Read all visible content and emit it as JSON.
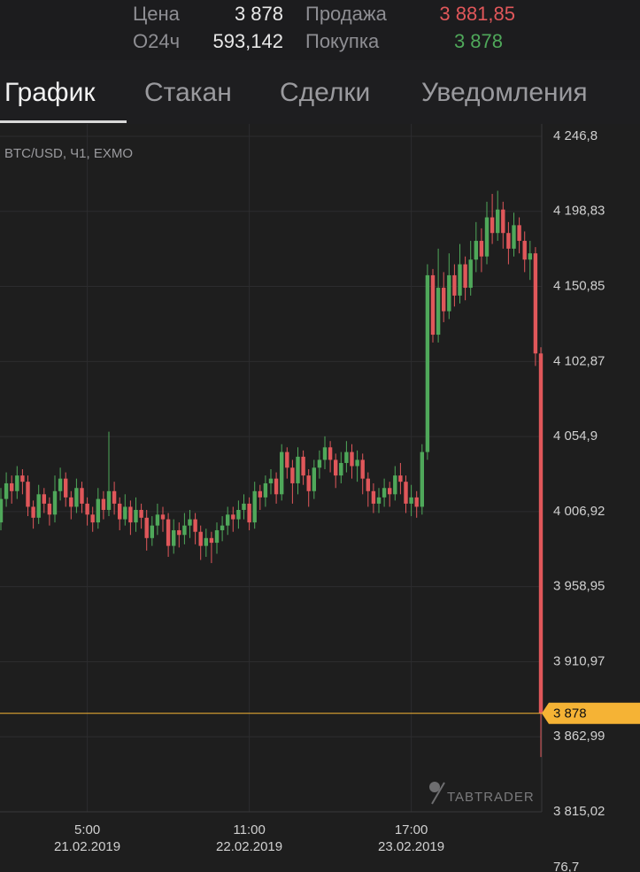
{
  "header": {
    "price_label": "Цена",
    "price": "3 878",
    "sell_label": "Продажа",
    "sell": "3 881,85",
    "volume_label": "О24ч",
    "volume": "593,142",
    "buy_label": "Покупка",
    "buy": "3 878"
  },
  "tabs": [
    "График",
    "Стакан",
    "Сделки",
    "Уведомления"
  ],
  "chart_data": {
    "type": "candlestick",
    "subtitle": "BTC/USD, Ч1, EXMO",
    "watermark": "TABTRADER",
    "volume_axis_top": "76,7",
    "up_color": "#4fa85a",
    "down_color": "#e0575a",
    "grid": true,
    "current_price": {
      "value": 3878,
      "label": "3 878"
    },
    "current_price_color": "#f5b335",
    "ylim": [
      3815.02,
      4246.8
    ],
    "yticks": [
      {
        "value": 4246.8,
        "label": "4 246,8"
      },
      {
        "value": 4198.83,
        "label": "4 198,83"
      },
      {
        "value": 4150.85,
        "label": "4 150,85"
      },
      {
        "value": 4102.87,
        "label": "4 102,87"
      },
      {
        "value": 4054.9,
        "label": "4 054,9"
      },
      {
        "value": 4006.92,
        "label": "4 006,92"
      },
      {
        "value": 3958.95,
        "label": "3 958,95"
      },
      {
        "value": 3910.97,
        "label": "3 910,97"
      },
      {
        "value": 3862.99,
        "label": "3 862,99"
      },
      {
        "value": 3815.02,
        "label": "3 815,02"
      }
    ],
    "categories": [
      null,
      null,
      null,
      null,
      null,
      null,
      null,
      null,
      null,
      null,
      null,
      null,
      null,
      null,
      null,
      null,
      [
        "5:00",
        "21.02.2019"
      ],
      null,
      null,
      null,
      null,
      null,
      null,
      null,
      null,
      null,
      null,
      null,
      null,
      null,
      null,
      null,
      null,
      null,
      null,
      null,
      null,
      null,
      null,
      null,
      null,
      null,
      null,
      null,
      null,
      null,
      [
        "11:00",
        "22.02.2019"
      ],
      null,
      null,
      null,
      null,
      null,
      null,
      null,
      null,
      null,
      null,
      null,
      null,
      null,
      null,
      null,
      null,
      null,
      null,
      null,
      null,
      null,
      null,
      null,
      null,
      null,
      null,
      null,
      null,
      null,
      [
        "17:00",
        "23.02.2019"
      ],
      null,
      null,
      null,
      null,
      null,
      null,
      null,
      null,
      null,
      null,
      null,
      null,
      null,
      null,
      null,
      null,
      null,
      null,
      null,
      null,
      null,
      null,
      null,
      null
    ],
    "open": [
      4000,
      4015,
      4025,
      4020,
      4030,
      4026,
      4010,
      4003,
      4018,
      4012,
      4005,
      4020,
      4028,
      4016,
      4010,
      4022,
      4012,
      4005,
      4000,
      4015,
      4008,
      4020,
      4012,
      4002,
      4010,
      4000,
      4008,
      4003,
      3990,
      3998,
      4005,
      4002,
      3985,
      3995,
      3992,
      3998,
      4002,
      3994,
      3985,
      3990,
      3987,
      3995,
      3998,
      4005,
      4002,
      4008,
      4012,
      4000,
      4020,
      4016,
      4025,
      4028,
      4018,
      4045,
      4035,
      4025,
      4042,
      4030,
      4020,
      4035,
      4040,
      4048,
      4040,
      4030,
      4038,
      4045,
      4036,
      4040,
      4028,
      4020,
      4012,
      4016,
      4022,
      4018,
      4030,
      4026,
      4012,
      4016,
      4010,
      4045,
      4158,
      4120,
      4150,
      4135,
      4158,
      4145,
      4165,
      4150,
      4168,
      4180,
      4170,
      4195,
      4185,
      4200,
      4185,
      4175,
      4190,
      4180,
      4168,
      4172,
      4108
    ],
    "high": [
      4022,
      4032,
      4030,
      4036,
      4034,
      4030,
      4014,
      4024,
      4022,
      4016,
      4030,
      4035,
      4032,
      4020,
      4028,
      4026,
      4016,
      4010,
      4022,
      4020,
      4058,
      4026,
      4016,
      4018,
      4014,
      4016,
      4012,
      4008,
      4004,
      4012,
      4010,
      4006,
      4002,
      4000,
      4006,
      4008,
      4006,
      3998,
      3996,
      3994,
      4000,
      4004,
      4010,
      4010,
      4014,
      4018,
      4016,
      4026,
      4024,
      4030,
      4034,
      4032,
      4050,
      4048,
      4040,
      4048,
      4046,
      4034,
      4040,
      4046,
      4055,
      4052,
      4044,
      4045,
      4052,
      4050,
      4046,
      4044,
      4032,
      4025,
      4022,
      4028,
      4026,
      4036,
      4038,
      4030,
      4024,
      4020,
      4050,
      4165,
      4162,
      4175,
      4160,
      4172,
      4165,
      4178,
      4170,
      4180,
      4192,
      4188,
      4205,
      4210,
      4212,
      4205,
      4192,
      4198,
      4195,
      4186,
      4180,
      4176,
      4112
    ],
    "low": [
      3995,
      4010,
      4012,
      4015,
      4018,
      4004,
      3996,
      3999,
      4006,
      3998,
      4000,
      4014,
      4010,
      4002,
      4006,
      4006,
      3998,
      3994,
      3996,
      4002,
      4004,
      4005,
      3995,
      3998,
      3992,
      3994,
      3996,
      3982,
      3985,
      3992,
      3994,
      3978,
      3980,
      3984,
      3986,
      3990,
      3986,
      3976,
      3978,
      3974,
      3980,
      3988,
      3992,
      3994,
      3996,
      4002,
      3995,
      3996,
      4008,
      4010,
      4018,
      4012,
      4014,
      4028,
      4012,
      4018,
      4024,
      4010,
      4015,
      4028,
      4034,
      4032,
      4022,
      4025,
      4032,
      4028,
      4026,
      4018,
      4010,
      4006,
      4006,
      4010,
      4010,
      4014,
      4018,
      4006,
      4004,
      4003,
      4005,
      4040,
      4115,
      4115,
      4128,
      4130,
      4138,
      4140,
      4142,
      4145,
      4160,
      4160,
      4165,
      4178,
      4180,
      4175,
      4165,
      4170,
      4172,
      4160,
      4155,
      4100,
      3850
    ],
    "close": [
      4015,
      4025,
      4020,
      4030,
      4026,
      4010,
      4003,
      4018,
      4012,
      4005,
      4020,
      4028,
      4016,
      4010,
      4022,
      4012,
      4005,
      4000,
      4015,
      4008,
      4020,
      4012,
      4002,
      4010,
      4000,
      4008,
      4003,
      3990,
      3998,
      4005,
      4002,
      3985,
      3995,
      3992,
      3998,
      4002,
      3994,
      3985,
      3990,
      3987,
      3995,
      3998,
      4005,
      4002,
      4008,
      4012,
      4000,
      4020,
      4016,
      4025,
      4028,
      4018,
      4045,
      4035,
      4025,
      4042,
      4030,
      4020,
      4035,
      4040,
      4048,
      4040,
      4030,
      4038,
      4045,
      4036,
      4040,
      4028,
      4020,
      4012,
      4016,
      4022,
      4018,
      4030,
      4026,
      4012,
      4016,
      4010,
      4045,
      4158,
      4120,
      4150,
      4135,
      4158,
      4145,
      4165,
      4150,
      4168,
      4180,
      4170,
      4195,
      4185,
      4200,
      4185,
      4175,
      4190,
      4180,
      4168,
      4172,
      4108,
      3878
    ]
  }
}
